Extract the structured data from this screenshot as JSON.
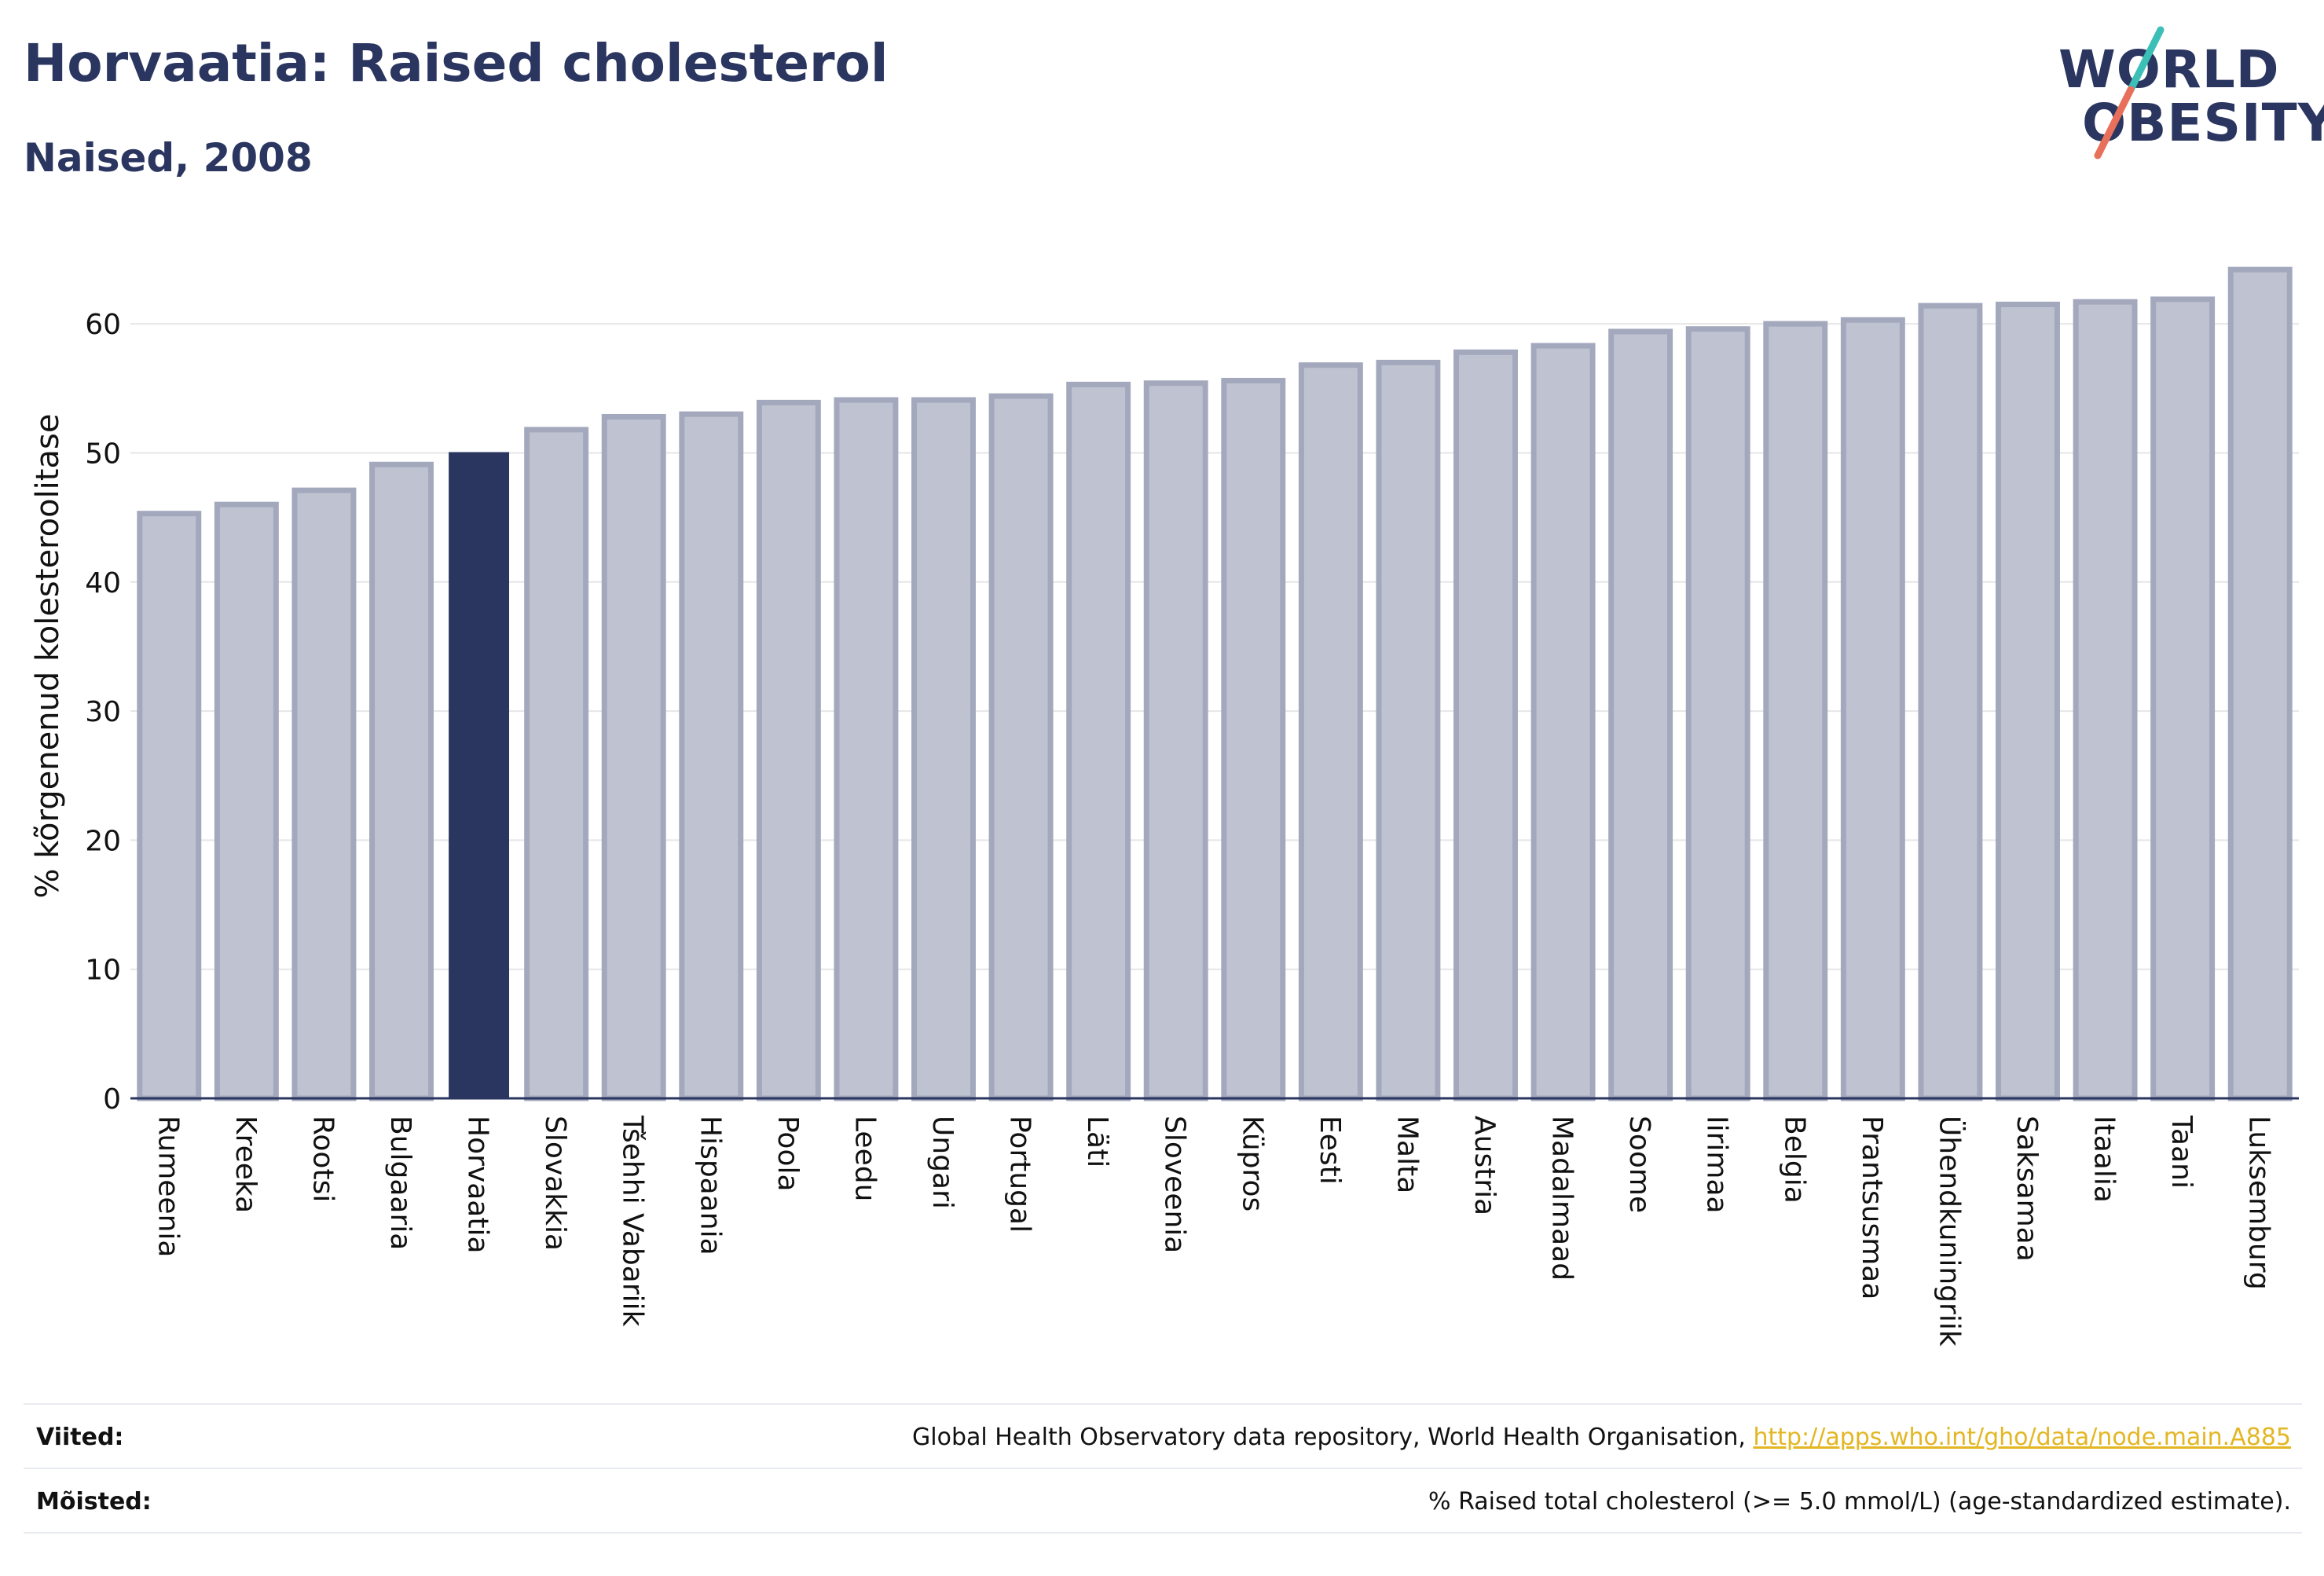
{
  "header": {
    "title": "Horvaatia: Raised cholesterol",
    "subtitle": "Naised, 2008"
  },
  "logo": {
    "line1": "WORLD",
    "line2": "OBESITY"
  },
  "colors": {
    "highlight": "#2a3560",
    "bar_fill": "#bfc3d1",
    "bar_stroke": "#a3a8bd",
    "grid": "#e6e6e6",
    "logo_teal": "#3bbfb7",
    "logo_coral": "#e8705a",
    "link": "#e3b622"
  },
  "chart_data": {
    "type": "bar",
    "ylabel": "% kõrgenenud kolesteroolitase",
    "xlabel": "",
    "ylim": [
      0,
      65
    ],
    "yticks": [
      0,
      10,
      20,
      30,
      40,
      50,
      60
    ],
    "highlight": "Horvaatia",
    "categories": [
      "Rumeenia",
      "Kreeka",
      "Rootsi",
      "Bulgaaria",
      "Horvaatia",
      "Slovakkia",
      "Tšehhi Vabariik",
      "Hispaania",
      "Poola",
      "Leedu",
      "Ungari",
      "Portugal",
      "Läti",
      "Sloveenia",
      "Küpros",
      "Eesti",
      "Malta",
      "Austria",
      "Madalmaad",
      "Soome",
      "Iirimaa",
      "Belgia",
      "Prantsusmaa",
      "Ühendkuningriik",
      "Saksamaa",
      "Itaalia",
      "Taani",
      "Luksemburg"
    ],
    "values": [
      45.3,
      46.0,
      47.1,
      49.1,
      50.0,
      51.8,
      52.8,
      53.0,
      53.9,
      54.1,
      54.1,
      54.4,
      55.3,
      55.4,
      55.6,
      56.8,
      57.0,
      57.8,
      58.3,
      59.4,
      59.6,
      60.0,
      60.3,
      61.4,
      61.5,
      61.7,
      61.9,
      64.2
    ],
    "grid": true,
    "legend": "none"
  },
  "footer": {
    "refs_label": "Viited:",
    "refs_text": "Global Health Observatory data repository, World Health Organisation, ",
    "refs_link": "http://apps.who.int/gho/data/node.main.A885",
    "defs_label": "Mõisted:",
    "defs_text": "% Raised total cholesterol (>= 5.0 mmol/L) (age-standardized estimate)."
  }
}
